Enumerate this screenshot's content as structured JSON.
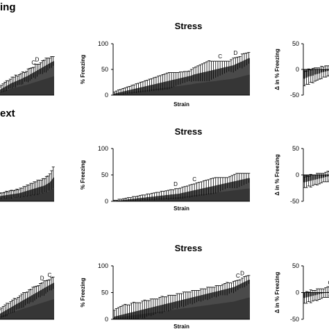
{
  "sections": [
    {
      "label": "ing"
    },
    {
      "label": "ext"
    },
    {
      "label": ""
    }
  ],
  "chart_data": [
    {
      "type": "area",
      "title": "",
      "xlabel": "",
      "ylabel": "",
      "ylim": [
        0,
        100
      ],
      "yticks": [],
      "series": [
        {
          "values": [
            10,
            12,
            14,
            16,
            18,
            20,
            22,
            24,
            25,
            27,
            28,
            30,
            31,
            33,
            35,
            36,
            38,
            40,
            42,
            44,
            46,
            48,
            50,
            52,
            54,
            56,
            58,
            60,
            62,
            64,
            66
          ]
        }
      ],
      "errors": [
        6,
        7,
        8,
        9,
        10,
        8,
        9,
        11,
        10,
        12,
        9,
        10,
        11,
        12,
        9,
        10,
        13,
        12,
        11,
        10,
        14,
        12,
        10,
        11,
        13,
        12,
        14,
        12,
        10,
        11,
        9
      ],
      "annotations": [
        {
          "text": "C",
          "x": 19
        },
        {
          "text": "D",
          "x": 21
        }
      ]
    },
    {
      "type": "area",
      "title": "Stress",
      "xlabel": "Strain",
      "ylabel": "% Freezing",
      "ylim": [
        0,
        100
      ],
      "yticks": [
        "0",
        "50",
        "100"
      ],
      "series": [
        {
          "values": [
            3,
            4,
            5,
            6,
            7,
            8,
            9,
            10,
            11,
            12,
            13,
            14,
            15,
            16,
            17,
            18,
            19,
            20,
            21,
            22,
            23,
            24,
            25,
            26,
            27,
            28,
            29,
            30,
            31,
            32,
            33,
            34,
            35,
            36,
            37,
            38,
            40,
            41,
            42,
            43,
            44,
            45,
            46,
            47,
            48,
            49,
            50,
            51,
            52,
            53,
            54,
            55,
            56,
            57,
            58,
            60,
            62,
            64,
            66,
            68,
            70,
            72
          ]
        }
      ],
      "errors": [
        3,
        4,
        5,
        5,
        6,
        6,
        7,
        7,
        8,
        8,
        9,
        9,
        10,
        10,
        11,
        11,
        12,
        12,
        13,
        13,
        14,
        14,
        15,
        15,
        16,
        16,
        15,
        14,
        13,
        12,
        12,
        11,
        11,
        10,
        10,
        12,
        13,
        14,
        15,
        16,
        17,
        18,
        19,
        20,
        18,
        17,
        16,
        15,
        14,
        13,
        12,
        11,
        10,
        12,
        14,
        13,
        12,
        11,
        14,
        13,
        12,
        11
      ],
      "annotations": [
        {
          "text": "C",
          "x": 48
        },
        {
          "text": "D",
          "x": 55
        }
      ]
    },
    {
      "type": "bar",
      "title": "",
      "xlabel": "",
      "ylabel": "Δ in % Freezing",
      "ylim": [
        -50,
        50
      ],
      "yticks": [
        "50",
        "0",
        "-50"
      ],
      "series": [
        {
          "values": [
            -18,
            -16,
            -14,
            -13,
            -12,
            -10,
            -9,
            -8,
            -6,
            -5,
            -4,
            -3,
            -2,
            -1
          ]
        }
      ],
      "errors": [
        14,
        13,
        15,
        12,
        14,
        13,
        12,
        11,
        12,
        10,
        11,
        10,
        9,
        8
      ]
    },
    {
      "type": "area",
      "title": "",
      "xlabel": "",
      "ylabel": "",
      "ylim": [
        0,
        100
      ],
      "yticks": [],
      "series": [
        {
          "values": [
            10,
            10,
            11,
            11,
            12,
            12,
            13,
            13,
            14,
            14,
            15,
            15,
            16,
            17,
            18,
            19,
            20,
            21,
            22,
            23,
            24,
            25,
            26,
            27,
            28,
            29,
            30,
            32,
            34,
            36,
            40,
            45
          ]
        }
      ],
      "errors": [
        5,
        6,
        5,
        6,
        7,
        6,
        7,
        8,
        6,
        7,
        8,
        7,
        9,
        8,
        10,
        9,
        11,
        10,
        12,
        11,
        13,
        12,
        14,
        13,
        12,
        14,
        13,
        15,
        14,
        16,
        18,
        20
      ],
      "annotations": []
    },
    {
      "type": "area",
      "title": "Stress",
      "xlabel": "Strain",
      "ylabel": "% Freezing",
      "ylim": [
        0,
        100
      ],
      "yticks": [
        "0",
        "50",
        "100"
      ],
      "series": [
        {
          "values": [
            1,
            1,
            2,
            2,
            3,
            3,
            4,
            4,
            5,
            5,
            6,
            6,
            7,
            7,
            8,
            8,
            9,
            9,
            10,
            10,
            11,
            11,
            12,
            12,
            13,
            13,
            14,
            14,
            15,
            16,
            17,
            18,
            19,
            20,
            21,
            22,
            23,
            24,
            25,
            26,
            27,
            28,
            29,
            30,
            31,
            32,
            33,
            34,
            35,
            36,
            37,
            38,
            39,
            40,
            41,
            42,
            43,
            44
          ]
        }
      ],
      "errors": [
        1,
        1,
        2,
        2,
        2,
        3,
        3,
        3,
        4,
        4,
        4,
        5,
        5,
        5,
        6,
        6,
        6,
        7,
        7,
        7,
        8,
        8,
        8,
        9,
        9,
        9,
        10,
        10,
        10,
        11,
        11,
        11,
        12,
        12,
        12,
        13,
        13,
        13,
        14,
        14,
        14,
        15,
        15,
        15,
        14,
        13,
        12,
        11,
        10,
        11,
        12,
        13,
        14,
        13,
        12,
        11,
        10,
        9
      ],
      "annotations": [
        {
          "text": "D",
          "x": 26
        },
        {
          "text": "C",
          "x": 34
        }
      ]
    },
    {
      "type": "bar",
      "title": "",
      "xlabel": "",
      "ylabel": "Δ in % Freezing",
      "ylim": [
        -50,
        50
      ],
      "yticks": [
        "50",
        "0",
        "-50"
      ],
      "series": [
        {
          "values": [
            -14,
            -13,
            -12,
            -11,
            -10,
            -9,
            -8,
            -7,
            -6,
            -5,
            -4,
            -3,
            -2,
            -1
          ]
        }
      ],
      "errors": [
        10,
        11,
        9,
        12,
        10,
        9,
        11,
        10,
        9,
        8,
        9,
        10,
        8,
        7
      ]
    },
    {
      "type": "area",
      "title": "",
      "xlabel": "",
      "ylabel": "",
      "ylim": [
        0,
        100
      ],
      "yticks": [],
      "series": [
        {
          "values": [
            10,
            12,
            14,
            16,
            18,
            20,
            22,
            24,
            26,
            28,
            30,
            32,
            34,
            36,
            38,
            40,
            42,
            44,
            46,
            48,
            50,
            52,
            54,
            56,
            58,
            60,
            62,
            64,
            66,
            68
          ]
        }
      ],
      "errors": [
        8,
        9,
        10,
        11,
        12,
        10,
        11,
        12,
        13,
        10,
        11,
        12,
        13,
        14,
        12,
        11,
        13,
        12,
        14,
        13,
        12,
        11,
        13,
        12,
        14,
        12,
        11,
        10,
        12,
        11
      ],
      "annotations": [
        {
          "text": "D",
          "x": 23
        },
        {
          "text": "C",
          "x": 27
        }
      ]
    },
    {
      "type": "area",
      "title": "Stress",
      "xlabel": "Strain",
      "ylabel": "% Freezing",
      "ylim": [
        0,
        100
      ],
      "yticks": [
        "0",
        "50",
        "100"
      ],
      "series": [
        {
          "values": [
            5,
            6,
            7,
            8,
            9,
            10,
            11,
            12,
            13,
            14,
            15,
            16,
            17,
            18,
            19,
            20,
            21,
            22,
            23,
            24,
            25,
            26,
            27,
            28,
            29,
            30,
            31,
            32,
            33,
            34,
            35,
            36,
            37,
            38,
            39,
            40,
            41,
            42,
            43,
            44,
            45,
            46,
            47,
            48,
            49,
            50,
            51,
            52,
            53,
            54,
            55,
            56,
            57,
            58,
            59,
            60,
            62,
            64,
            66,
            68,
            70,
            72,
            74
          ]
        }
      ],
      "errors": [
        12,
        14,
        15,
        16,
        17,
        18,
        16,
        15,
        17,
        18,
        16,
        15,
        14,
        16,
        17,
        15,
        14,
        16,
        15,
        14,
        13,
        15,
        16,
        14,
        13,
        15,
        14,
        13,
        12,
        14,
        13,
        12,
        14,
        13,
        12,
        11,
        13,
        12,
        11,
        10,
        12,
        11,
        10,
        12,
        11,
        10,
        9,
        11,
        10,
        9,
        10,
        11,
        12,
        10,
        9,
        11,
        10,
        9,
        8,
        9,
        10,
        9,
        8
      ],
      "annotations": [
        {
          "text": "C",
          "x": 57
        },
        {
          "text": "D",
          "x": 59
        }
      ]
    },
    {
      "type": "bar",
      "title": "",
      "xlabel": "",
      "ylabel": "Δ in % Freezing",
      "ylim": [
        -50,
        50
      ],
      "yticks": [
        "50",
        "0",
        "-50"
      ],
      "series": [
        {
          "values": [
            -10,
            -9,
            -8,
            -7,
            -6,
            -5,
            -4,
            -3,
            -2,
            -1,
            0,
            1,
            2,
            3
          ]
        }
      ],
      "errors": [
        10,
        11,
        9,
        12,
        10,
        9,
        11,
        10,
        9,
        8,
        9,
        10,
        8,
        7
      ],
      "annotations": [
        {
          "text": "C",
          "x": 12
        }
      ]
    }
  ]
}
